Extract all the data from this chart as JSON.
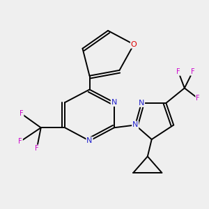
{
  "background_color": "#efefef",
  "bond_color": "#000000",
  "atom_colors": {
    "N": "#2222cc",
    "O": "#dd0000",
    "F": "#cc00cc",
    "C": "#000000"
  },
  "font_size_atom": 8.0,
  "font_size_F": 7.0,
  "lw": 1.4
}
